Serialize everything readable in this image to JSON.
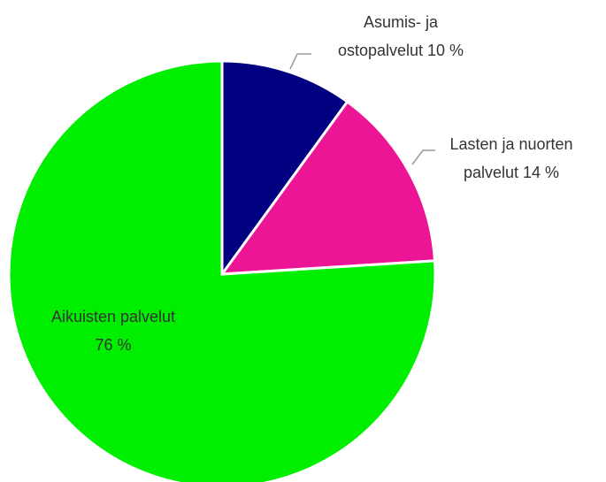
{
  "chart_data": {
    "type": "pie",
    "categories": [
      "Asumis- ja ostopalvelut",
      "Lasten ja nuorten palvelut",
      "Aikuisten palvelut"
    ],
    "values": [
      10,
      14,
      76
    ],
    "value_labels": [
      "10 %",
      "14 %",
      "76 %"
    ],
    "colors": [
      "#000080",
      "#ec1595",
      "#00ee00"
    ]
  }
}
